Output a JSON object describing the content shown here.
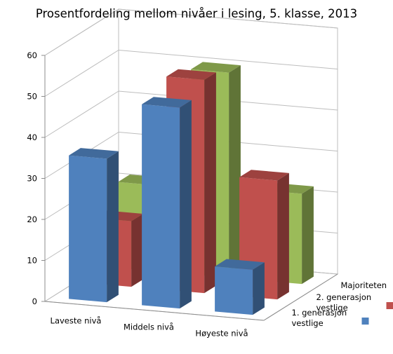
{
  "chart_data": {
    "type": "bar",
    "title": "Prosentfordeling mellom nivåer i lesing, 5. klasse, 2013",
    "categories": [
      "Laveste nivå",
      "Middels nivå",
      "Høyeste nivå"
    ],
    "series": [
      {
        "name": "1. generasjon vestlige",
        "color": "#4f81bd",
        "values": [
          35,
          49,
          11
        ]
      },
      {
        "name": "2. generasjon vestlige",
        "color": "#c0504d",
        "values": [
          16,
          52,
          29
        ]
      },
      {
        "name": "Majoriteten",
        "color": "#9bbb59",
        "values": [
          21,
          50,
          22
        ]
      }
    ],
    "yticks": [
      0,
      10,
      20,
      30,
      40,
      50,
      60
    ],
    "ylim": [
      0,
      60
    ],
    "grid": true,
    "legend": "right, along the depth axis",
    "projection": "3d-perspective"
  }
}
